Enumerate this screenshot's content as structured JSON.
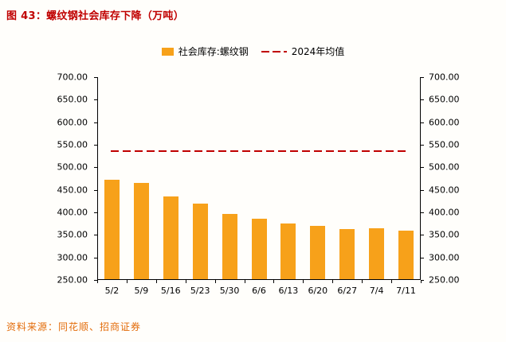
{
  "title": "图 43：螺纹钢社会库存下降（万吨）",
  "source_note": "资料来源：同花顺、招商证券",
  "colors": {
    "title": "#c00000",
    "bar": "#f7a11a",
    "avg_line": "#c00000",
    "source": "#e36c0a",
    "axis": "#000000"
  },
  "chart_data": {
    "type": "bar",
    "title": "螺纹钢社会库存下降（万吨）",
    "categories": [
      "5/2",
      "5/9",
      "5/16",
      "5/23",
      "5/30",
      "6/6",
      "6/13",
      "6/20",
      "6/27",
      "7/4",
      "7/11"
    ],
    "series": [
      {
        "name": "社会库存:螺纹钢",
        "type": "bar",
        "values": [
          470,
          463,
          434,
          417,
          394,
          385,
          374,
          369,
          362,
          363,
          358
        ]
      },
      {
        "name": "2024年均值",
        "type": "dashed-line",
        "value": 535
      }
    ],
    "xlabel": "",
    "ylabel": "",
    "ylim": [
      250,
      700
    ],
    "ytick_step": 50,
    "ytick_labels": [
      "250.00",
      "300.00",
      "350.00",
      "400.00",
      "450.00",
      "500.00",
      "550.00",
      "600.00",
      "650.00",
      "700.00"
    ],
    "dual_y_axis": true,
    "grid": false,
    "legend_position": "top"
  }
}
